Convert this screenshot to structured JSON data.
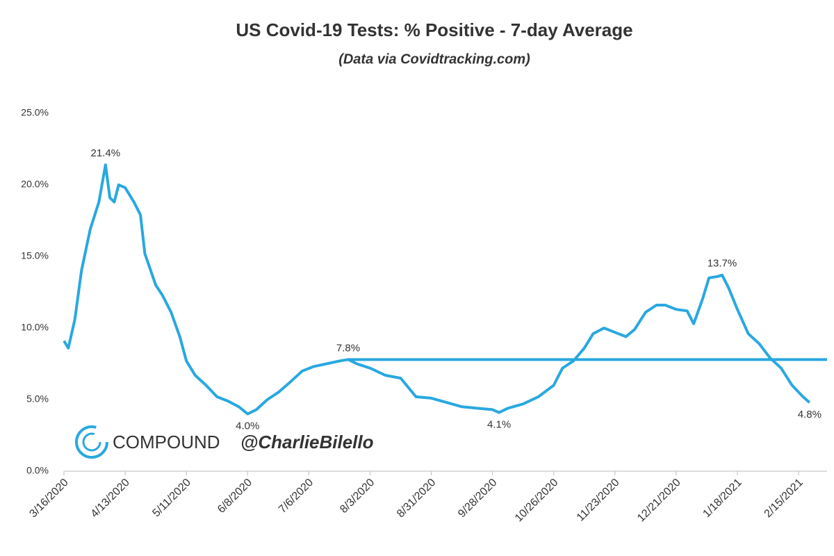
{
  "chart_data": {
    "type": "line",
    "title": "US Covid-19 Tests: % Positive - 7-day Average",
    "subtitle": "(Data via Covidtracking.com)",
    "watermark": [
      "COMPOUND",
      "@CharlieBilello"
    ],
    "color": "#29a8e0",
    "x": [
      "3/16/2020",
      "3/18/2020",
      "3/21/2020",
      "3/24/2020",
      "3/28/2020",
      "4/1/2020",
      "4/4/2020",
      "4/6/2020",
      "4/8/2020",
      "4/10/2020",
      "4/13/2020",
      "4/17/2020",
      "4/20/2020",
      "4/22/2020",
      "4/27/2020",
      "4/30/2020",
      "5/4/2020",
      "5/8/2020",
      "5/11/2020",
      "5/15/2020",
      "5/20/2020",
      "5/25/2020",
      "5/30/2020",
      "6/4/2020",
      "6/8/2020",
      "6/12/2020",
      "6/17/2020",
      "6/22/2020",
      "6/28/2020",
      "7/3/2020",
      "7/8/2020",
      "7/14/2020",
      "7/20/2020",
      "7/24/2020",
      "7/28/2020",
      "8/3/2020",
      "8/10/2020",
      "8/17/2020",
      "8/24/2020",
      "8/31/2020",
      "9/7/2020",
      "9/14/2020",
      "9/21/2020",
      "9/28/2020",
      "10/1/2020",
      "10/5/2020",
      "10/12/2020",
      "10/19/2020",
      "10/26/2020",
      "10/30/2020",
      "11/4/2020",
      "11/9/2020",
      "11/13/2020",
      "11/18/2020",
      "11/23/2020",
      "11/28/2020",
      "12/2/2020",
      "12/7/2020",
      "12/12/2020",
      "12/16/2020",
      "12/21/2020",
      "12/26/2020",
      "12/29/2020",
      "1/2/2021",
      "1/5/2021",
      "1/9/2021",
      "1/11/2021",
      "1/14/2021",
      "1/18/2021",
      "1/23/2021",
      "1/28/2021",
      "2/2/2021",
      "2/7/2021",
      "2/12/2021",
      "2/17/2021",
      "2/20/2021"
    ],
    "values": [
      9.1,
      8.6,
      10.6,
      14.0,
      16.9,
      18.8,
      21.4,
      19.1,
      18.8,
      20.0,
      19.8,
      18.8,
      17.9,
      15.2,
      13.0,
      12.3,
      11.1,
      9.4,
      7.7,
      6.7,
      6.0,
      5.2,
      4.9,
      4.5,
      4.0,
      4.3,
      5.0,
      5.5,
      6.3,
      7.0,
      7.3,
      7.5,
      7.7,
      7.8,
      7.5,
      7.2,
      6.7,
      6.5,
      5.2,
      5.1,
      4.8,
      4.5,
      4.4,
      4.3,
      4.1,
      4.4,
      4.7,
      5.2,
      6.0,
      7.2,
      7.7,
      8.6,
      9.6,
      10.0,
      9.7,
      9.4,
      9.9,
      11.1,
      11.6,
      11.6,
      11.3,
      11.2,
      10.3,
      12.0,
      13.5,
      13.6,
      13.7,
      12.8,
      11.3,
      9.6,
      8.9,
      7.9,
      7.2,
      6.0,
      5.2,
      4.8
    ],
    "value_labels": [
      null,
      null,
      null,
      null,
      null,
      null,
      "21.4%",
      null,
      null,
      null,
      null,
      null,
      null,
      null,
      null,
      null,
      null,
      null,
      null,
      null,
      null,
      null,
      null,
      null,
      "4.0%",
      null,
      null,
      null,
      null,
      null,
      null,
      null,
      null,
      "7.8%",
      null,
      null,
      null,
      null,
      null,
      null,
      null,
      null,
      null,
      null,
      "4.1%",
      null,
      null,
      null,
      null,
      null,
      null,
      null,
      null,
      null,
      null,
      null,
      null,
      null,
      null,
      null,
      null,
      null,
      null,
      null,
      null,
      null,
      "13.7%",
      null,
      null,
      null,
      null,
      null,
      null,
      null,
      null,
      "4.8%"
    ],
    "hline": 7.8,
    "xlim": [
      "3/16/2020",
      "2/28/2021"
    ],
    "xticks": [
      "3/16/2020",
      "4/13/2020",
      "5/11/2020",
      "6/8/2020",
      "7/6/2020",
      "8/3/2020",
      "8/31/2020",
      "9/28/2020",
      "10/26/2020",
      "11/23/2020",
      "12/21/2020",
      "1/18/2021",
      "2/15/2021"
    ],
    "ylim": [
      0,
      25
    ],
    "yticks": [
      {
        "value": 0,
        "label": "0.0%"
      },
      {
        "value": 5,
        "label": "5.0%"
      },
      {
        "value": 10,
        "label": "10.0%"
      },
      {
        "value": 15,
        "label": "15.0%"
      },
      {
        "value": 20,
        "label": "20.0%"
      },
      {
        "value": 25,
        "label": "25.0%"
      }
    ]
  }
}
